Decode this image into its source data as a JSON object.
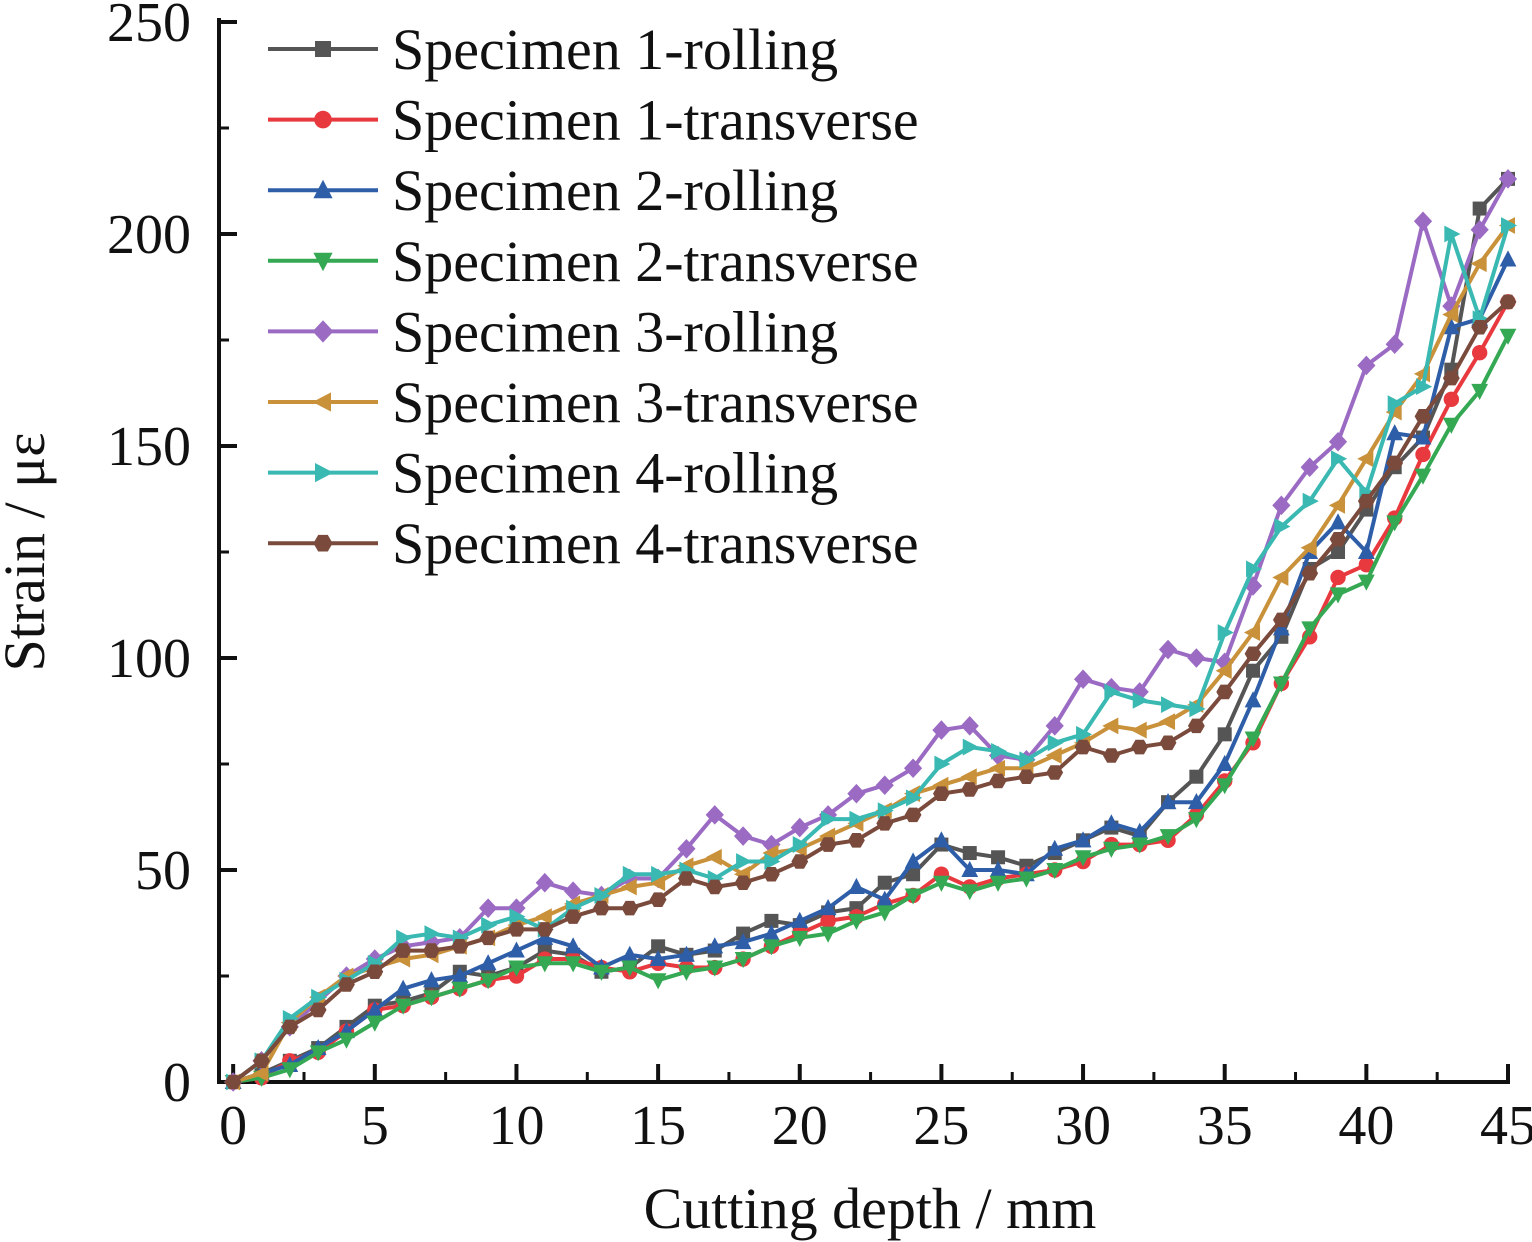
{
  "chart_data": {
    "type": "line",
    "title": "",
    "xlabel": "Cutting depth / mm",
    "ylabel": "Strain / μɛ",
    "xlim": [
      -0.5,
      45
    ],
    "ylim": [
      0,
      250
    ],
    "xticks": [
      0,
      5,
      10,
      15,
      20,
      25,
      30,
      35,
      40,
      45
    ],
    "yticks": [
      0,
      50,
      100,
      150,
      200,
      250
    ],
    "grid": false,
    "legend_position": "top-left",
    "x": [
      0,
      1,
      2,
      3,
      4,
      5,
      6,
      7,
      8,
      9,
      10,
      11,
      12,
      13,
      14,
      15,
      16,
      17,
      18,
      19,
      20,
      21,
      22,
      23,
      24,
      25,
      26,
      27,
      28,
      29,
      30,
      31,
      32,
      33,
      34,
      35,
      36,
      37,
      38,
      39,
      40,
      41,
      42,
      43,
      44,
      45
    ],
    "series": [
      {
        "name": "Specimen 1-rolling",
        "color": "#555555",
        "marker": "square",
        "values": [
          0,
          2,
          5,
          8,
          13,
          18,
          19,
          21,
          26,
          25,
          27,
          31,
          30,
          26,
          27,
          32,
          30,
          31,
          35,
          38,
          37,
          40,
          41,
          47,
          49,
          56,
          54,
          53,
          51,
          54,
          57,
          60,
          58,
          66,
          72,
          82,
          97,
          105,
          121,
          125,
          135,
          145,
          152,
          168,
          206,
          213
        ]
      },
      {
        "name": "Specimen 1-transverse",
        "color": "#e8393f",
        "marker": "circle",
        "values": [
          0,
          1,
          5,
          7,
          12,
          17,
          18,
          20,
          22,
          24,
          25,
          29,
          29,
          27,
          26,
          28,
          27,
          27,
          29,
          32,
          35,
          38,
          39,
          42,
          44,
          49,
          46,
          48,
          49,
          50,
          52,
          56,
          56,
          57,
          63,
          71,
          80,
          94,
          105,
          119,
          122,
          133,
          148,
          161,
          172,
          184
        ]
      },
      {
        "name": "Specimen 2-rolling",
        "color": "#2e5ea8",
        "marker": "triangle-up",
        "values": [
          0,
          2,
          4,
          8,
          12,
          17,
          22,
          24,
          25,
          28,
          31,
          34,
          32,
          27,
          30,
          29,
          30,
          32,
          33,
          35,
          38,
          41,
          46,
          43,
          52,
          57,
          50,
          50,
          49,
          55,
          57,
          61,
          59,
          66,
          66,
          75,
          90,
          107,
          125,
          132,
          125,
          153,
          152,
          178,
          180,
          194
        ]
      },
      {
        "name": "Specimen 2-transverse",
        "color": "#34a853",
        "marker": "triangle-down",
        "values": [
          0,
          1,
          3,
          7,
          10,
          14,
          18,
          20,
          22,
          24,
          27,
          28,
          28,
          26,
          27,
          24,
          26,
          27,
          29,
          32,
          34,
          35,
          38,
          40,
          44,
          47,
          45,
          47,
          48,
          50,
          53,
          55,
          56,
          58,
          62,
          70,
          81,
          94,
          107,
          115,
          118,
          132,
          143,
          155,
          163,
          176
        ]
      },
      {
        "name": "Specimen 3-rolling",
        "color": "#9b6bc4",
        "marker": "diamond",
        "values": [
          0,
          5,
          13,
          19,
          25,
          29,
          32,
          33,
          34,
          41,
          41,
          47,
          45,
          44,
          48,
          48,
          55,
          63,
          58,
          56,
          60,
          63,
          68,
          70,
          74,
          83,
          84,
          77,
          76,
          84,
          95,
          93,
          92,
          102,
          100,
          99,
          117,
          136,
          145,
          151,
          169,
          174,
          203,
          183,
          201,
          213
        ]
      },
      {
        "name": "Specimen 3-transverse",
        "color": "#c8913a",
        "marker": "triangle-left",
        "values": [
          0,
          2,
          14,
          20,
          25,
          27,
          29,
          30,
          32,
          34,
          37,
          39,
          42,
          44,
          46,
          47,
          51,
          53,
          49,
          54,
          55,
          58,
          61,
          64,
          68,
          70,
          72,
          74,
          74,
          77,
          80,
          84,
          83,
          85,
          89,
          97,
          106,
          119,
          126,
          136,
          147,
          158,
          167,
          181,
          193,
          202
        ]
      },
      {
        "name": "Specimen 4-rolling",
        "color": "#3ab8b2",
        "marker": "triangle-right",
        "values": [
          0,
          5,
          15,
          20,
          24,
          28,
          34,
          35,
          34,
          37,
          39,
          36,
          41,
          44,
          49,
          49,
          50,
          48,
          52,
          52,
          56,
          62,
          62,
          64,
          67,
          75,
          79,
          78,
          76,
          80,
          82,
          92,
          90,
          89,
          88,
          106,
          121,
          131,
          137,
          147,
          139,
          160,
          164,
          200,
          180,
          202
        ]
      },
      {
        "name": "Specimen 4-transverse",
        "color": "#7a4a3c",
        "marker": "hexagon",
        "values": [
          0,
          5,
          13,
          17,
          23,
          26,
          31,
          31,
          32,
          34,
          36,
          36,
          39,
          41,
          41,
          43,
          48,
          46,
          47,
          49,
          52,
          56,
          57,
          61,
          63,
          68,
          69,
          71,
          72,
          73,
          79,
          77,
          79,
          80,
          84,
          92,
          101,
          109,
          120,
          128,
          137,
          146,
          157,
          166,
          178,
          184
        ]
      }
    ]
  }
}
